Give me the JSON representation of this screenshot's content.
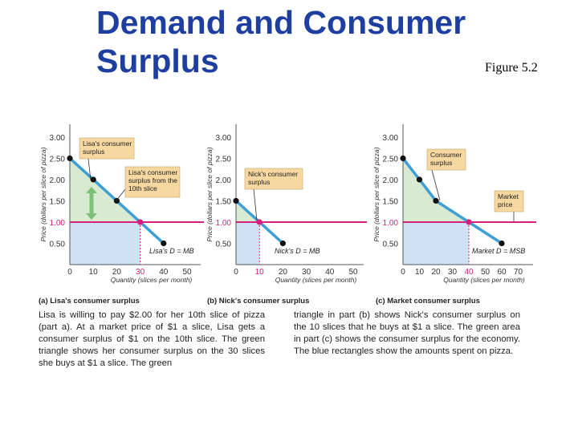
{
  "slide": {
    "title_line1": "Demand and Consumer",
    "title_line2": "Surplus",
    "figure_ref": "Figure 5.2"
  },
  "colors": {
    "title": "#1f3fa0",
    "demand_line": "#3d9fd6",
    "price_line": "#d6207e",
    "consumer_surplus_fill": "#d9ead3",
    "expenditure_fill": "#cfe2f3",
    "label_box": "#f7d8a0",
    "arrow_green": "#7cc07a",
    "axis": "#555555"
  },
  "chart_data": [
    {
      "type": "line",
      "panel": "(a) Lisa's consumer surplus",
      "ylabel": "Price (dollars per slice of pizza)",
      "xlabel": "Quantity (slices per month)",
      "xlim": [
        0,
        50
      ],
      "ylim": [
        0,
        3.0
      ],
      "x_ticks": [
        "0",
        "10",
        "20",
        "30",
        "40",
        "50"
      ],
      "y_ticks": [
        "0.50",
        "1.00",
        "1.50",
        "2.00",
        "2.50",
        "3.00"
      ],
      "highlight_x_tick": "30",
      "market_price": 1.0,
      "quantity_bought": 30,
      "series": [
        {
          "name": "Lisa's D = MB",
          "x": [
            0,
            10,
            20,
            30,
            40
          ],
          "y": [
            2.5,
            2.0,
            1.5,
            1.0,
            0.5
          ]
        }
      ],
      "highlight_point": [
        30,
        1.0
      ],
      "callouts": [
        {
          "text": [
            "Lisa's consumer",
            "surplus"
          ]
        },
        {
          "text": [
            "Lisa's consumer",
            "surplus from the",
            "10th slice"
          ]
        }
      ]
    },
    {
      "type": "line",
      "panel": "(b) Nick's consumer surplus",
      "ylabel": "Price (dollars per slice of pizza)",
      "xlabel": "Quantity (slices per month)",
      "xlim": [
        0,
        50
      ],
      "ylim": [
        0,
        3.0
      ],
      "x_ticks": [
        "0",
        "10",
        "20",
        "30",
        "40",
        "50"
      ],
      "y_ticks": [
        "0.50",
        "1.00",
        "1.50",
        "2.00",
        "2.50",
        "3.00"
      ],
      "highlight_x_tick": "10",
      "market_price": 1.0,
      "quantity_bought": 10,
      "series": [
        {
          "name": "Nick's D = MB",
          "x": [
            0,
            10,
            20
          ],
          "y": [
            1.5,
            1.0,
            0.5
          ]
        }
      ],
      "highlight_point": [
        10,
        1.0
      ],
      "callouts": [
        {
          "text": [
            "Nick's consumer",
            "surplus"
          ]
        }
      ]
    },
    {
      "type": "line",
      "panel": "(c) Market consumer surplus",
      "ylabel": "Price (dollars per slice of pizza)",
      "xlabel": "Quantity (slices per month)",
      "xlim": [
        0,
        70
      ],
      "ylim": [
        0,
        3.0
      ],
      "x_ticks": [
        "0",
        "10",
        "20",
        "30",
        "40",
        "50",
        "60",
        "70"
      ],
      "y_ticks": [
        "0.50",
        "1.00",
        "1.50",
        "2.00",
        "2.50",
        "3.00"
      ],
      "highlight_x_tick": "40",
      "market_price": 1.0,
      "quantity_bought": 40,
      "series": [
        {
          "name": "Market D = MSB",
          "x": [
            0,
            10,
            20,
            40,
            60
          ],
          "y": [
            2.5,
            2.0,
            1.5,
            1.0,
            0.5
          ]
        }
      ],
      "highlight_point": [
        40,
        1.0
      ],
      "callouts": [
        {
          "text": [
            "Consumer",
            "surplus"
          ]
        },
        {
          "text": [
            "Market",
            "price"
          ]
        }
      ]
    }
  ],
  "captions": {
    "left": "Lisa is willing to pay $2.00 for her 10th slice of pizza (part a). At a market price of $1 a slice, Lisa gets a consumer surplus of $1 on the 10th slice. The green triangle shows her consumer surplus on the 30 slices she buys at $1 a slice. The green",
    "right": "triangle in part (b) shows Nick's consumer surplus on the 10 slices that he buys at $1 a slice. The green area in part (c) shows the consumer surplus for the economy. The blue rectangles show the amounts spent on pizza."
  }
}
